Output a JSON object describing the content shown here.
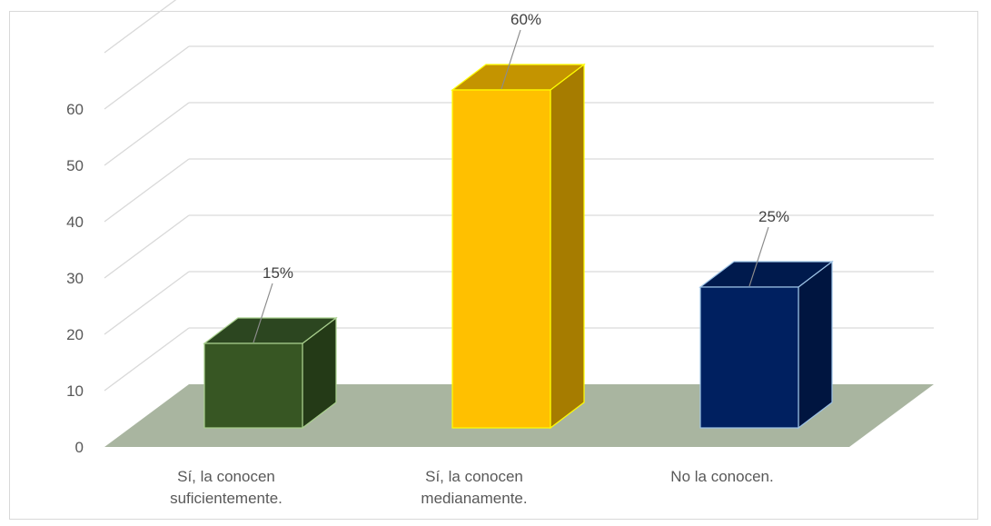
{
  "chart_data": {
    "type": "bar",
    "title": "",
    "xlabel": "",
    "ylabel": "",
    "categories": [
      [
        "Sí, la conocen",
        "suficientemente."
      ],
      [
        "Sí, la conocen",
        "medianamente."
      ],
      [
        "No la conocen."
      ]
    ],
    "values": [
      15,
      60,
      25
    ],
    "data_labels": [
      "15%",
      "60%",
      "25%"
    ],
    "ylim": [
      0,
      60
    ],
    "yticks": [
      0,
      10,
      20,
      30,
      40,
      50,
      60
    ],
    "grid": true,
    "legend": "none",
    "style": "3d-column",
    "colors": {
      "bars": [
        {
          "front": "#375623",
          "side": "#243a17",
          "top": "#2c4620",
          "stroke": "#a9d08e"
        },
        {
          "front": "#ffc000",
          "side": "#a67c00",
          "top": "#c49400",
          "stroke": "#ffff00"
        },
        {
          "front": "#002060",
          "side": "#001540",
          "top": "#001a4d",
          "stroke": "#9dc3e6"
        }
      ],
      "floor": "#a9b5a0",
      "grid": "#d9d9d9",
      "leader": "#8c8c8c"
    }
  }
}
